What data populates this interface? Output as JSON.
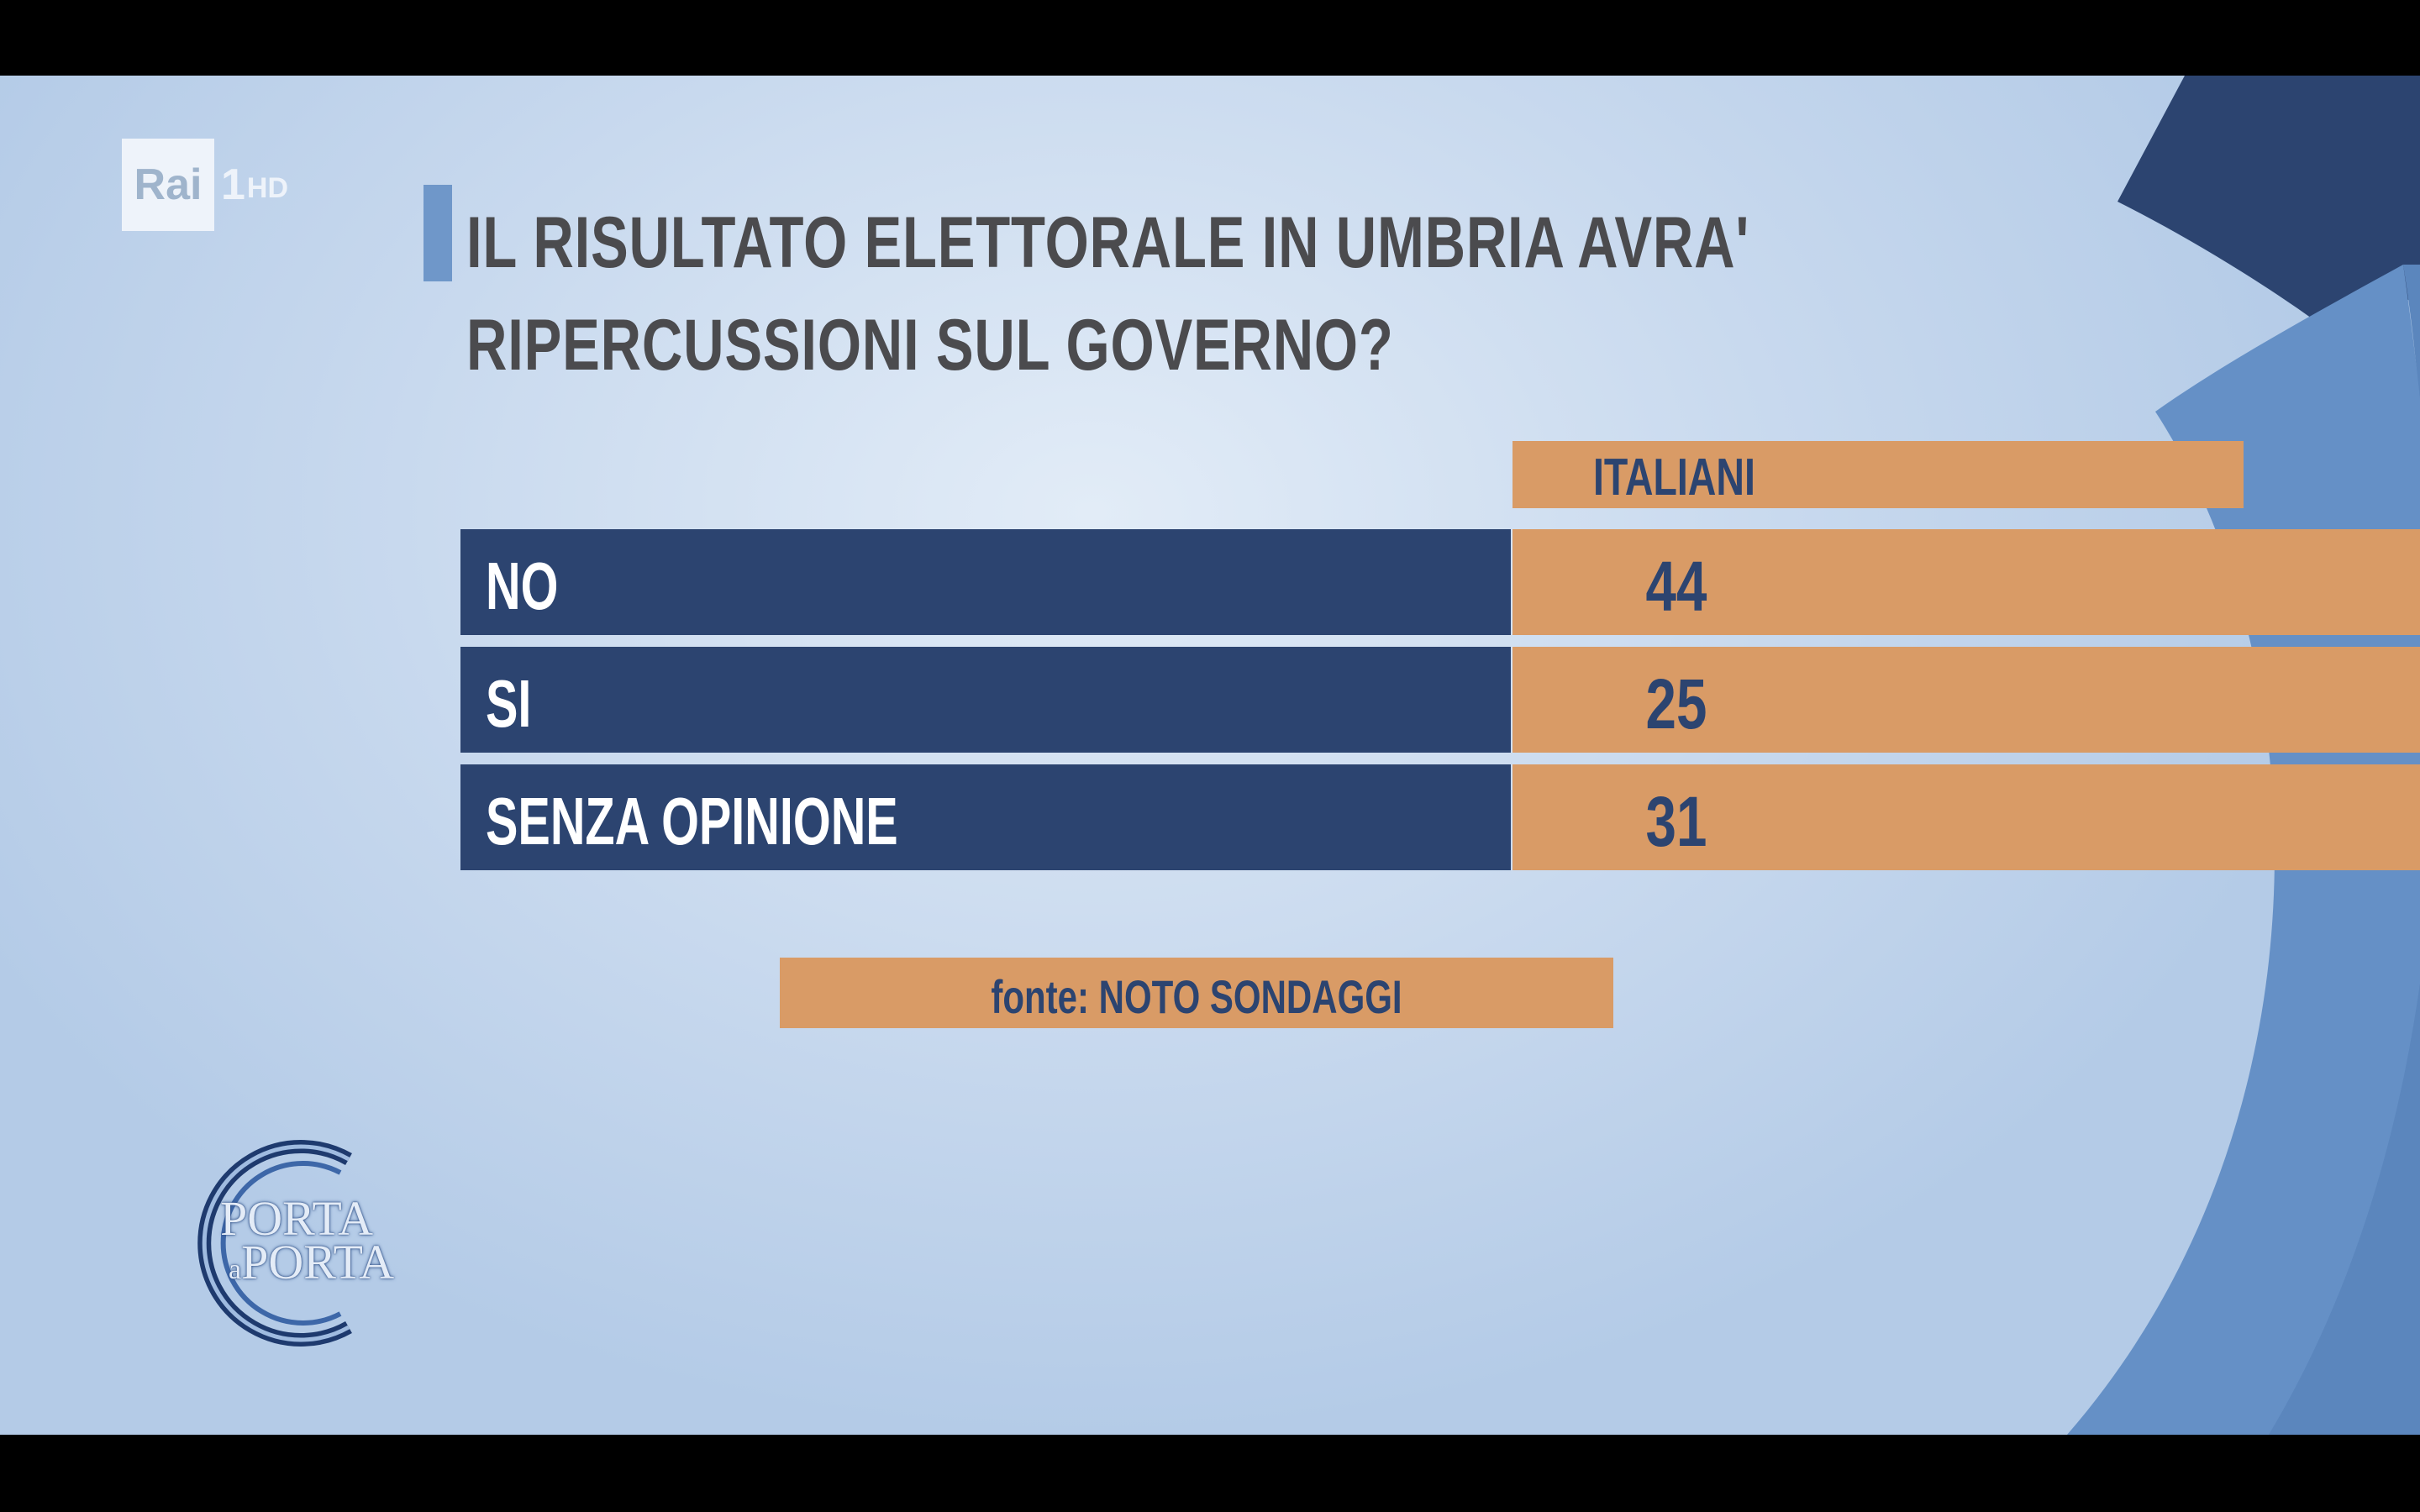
{
  "channel": {
    "logo": "Rai",
    "number": "1",
    "quality": "HD"
  },
  "question": {
    "line1": "IL RISULTATO ELETTORALE IN UMBRIA AVRA'",
    "line2": "RIPERCUSSIONI SUL GOVERNO?"
  },
  "table": {
    "column_header": "ITALIANI",
    "rows": [
      {
        "label": "NO",
        "value": "44"
      },
      {
        "label": "SI",
        "value": "25"
      },
      {
        "label": "SENZA OPINIONE",
        "value": "31"
      }
    ]
  },
  "source": "fonte: NOTO SONDAGGI",
  "show": {
    "line1": "PORTA",
    "connector": "a",
    "line2": "PORTA"
  },
  "colors": {
    "navy": "#2c4470",
    "orange": "#d99b66",
    "background": "#c8d9ee",
    "accent_blue": "#6f97c9"
  }
}
